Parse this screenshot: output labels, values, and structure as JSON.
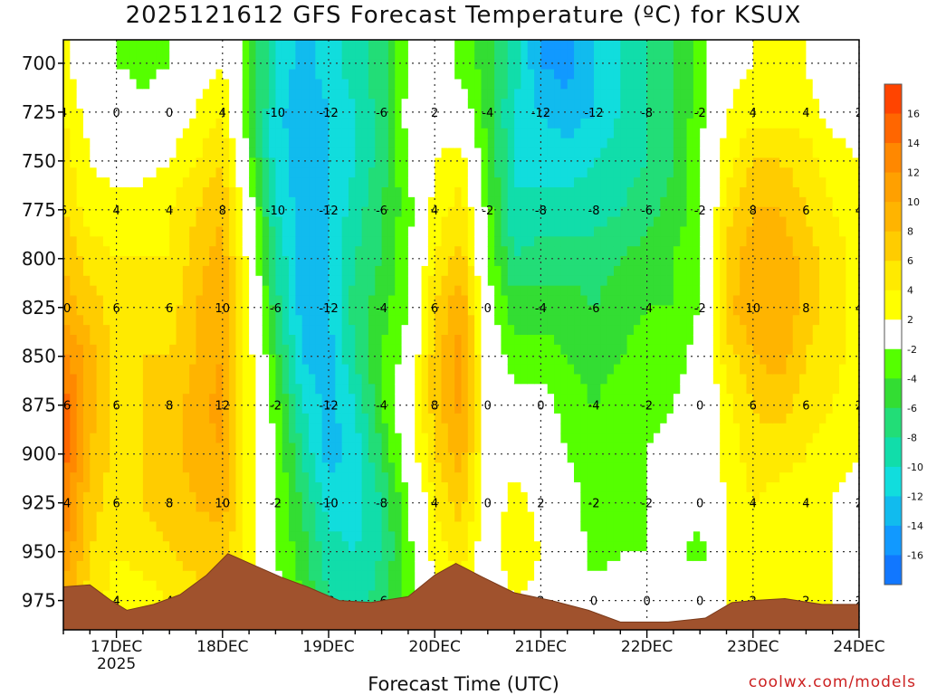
{
  "title": "2025121612 GFS Forecast Temperature (ºC) for KSUX",
  "xlabel": "Forecast Time (UTC)",
  "credit": "coolwx.com/models",
  "chart_data": {
    "type": "heatmap",
    "title": "2025121612 GFS Forecast Temperature (ºC) for KSUX",
    "xlabel": "Forecast Time (UTC)",
    "ylabel": "",
    "x_ticks": [
      "17DEC",
      "18DEC",
      "19DEC",
      "20DEC",
      "21DEC",
      "22DEC",
      "23DEC",
      "24DEC"
    ],
    "x_year": "2025",
    "xlim_days": [
      16.5,
      24.0
    ],
    "y_ticks": [
      700,
      725,
      750,
      775,
      800,
      825,
      850,
      875,
      900,
      925,
      950,
      975
    ],
    "ylim_hpa": [
      688,
      990
    ],
    "y_inverted": true,
    "colorbar": {
      "labels": [
        16,
        14,
        12,
        10,
        8,
        6,
        4,
        2,
        -2,
        -4,
        -6,
        -8,
        -10,
        -12,
        -14,
        -16
      ],
      "colors": [
        "#ff4400",
        "#ff6600",
        "#ff8800",
        "#ffa000",
        "#ffb400",
        "#ffcc00",
        "#ffea00",
        "#ffff00",
        "#ffffff",
        "#55ff00",
        "#33dd33",
        "#22dd77",
        "#11ddaa",
        "#11dddd",
        "#11bbee",
        "#1199ff",
        "#1177ff"
      ]
    },
    "terrain_color": "#a0522d",
    "columns": [
      {
        "day": 16.5,
        "values": {
          "700": 3,
          "725": 4,
          "750": 5,
          "775": 6,
          "800": 8,
          "825": 9,
          "850": 13,
          "875": 15,
          "900": 15,
          "925": 14,
          "950": 12,
          "975": 9
        }
      },
      {
        "day": 16.75,
        "values": {
          "700": -1,
          "725": 1,
          "750": 2,
          "775": 3,
          "800": 5,
          "825": 7,
          "850": 9,
          "875": 9,
          "900": 8,
          "925": 7,
          "950": 6,
          "975": 5
        }
      },
      {
        "day": 17.0,
        "values": {
          "700": -2,
          "725": 0,
          "750": 1,
          "775": 3,
          "800": 4,
          "825": 5,
          "850": 5,
          "875": 5,
          "900": 5,
          "925": 5,
          "950": 4,
          "975": 3
        }
      },
      {
        "day": 17.25,
        "values": {
          "700": -3,
          "725": -1,
          "750": 1,
          "775": 3,
          "800": 4,
          "825": 5,
          "850": 6,
          "875": 6,
          "900": 6,
          "925": 6,
          "950": 5,
          "975": 3
        }
      },
      {
        "day": 17.5,
        "values": {
          "700": -2,
          "725": 0,
          "750": 2,
          "775": 4,
          "800": 4,
          "825": 5,
          "850": 6,
          "875": 7,
          "900": 7,
          "925": 7,
          "950": 6,
          "975": 4
        }
      },
      {
        "day": 17.75,
        "values": {
          "700": 1,
          "725": 2,
          "750": 4,
          "775": 6,
          "800": 7,
          "825": 8,
          "850": 8,
          "875": 9,
          "900": 9,
          "925": 8,
          "950": 7,
          "975": 5
        }
      },
      {
        "day": 18.0,
        "values": {
          "700": 2,
          "725": 4,
          "750": 6,
          "775": 8,
          "800": 9,
          "825": 10,
          "850": 10,
          "875": 11,
          "900": 10,
          "925": 9,
          "950": 7,
          "975": 5
        }
      },
      {
        "day": 18.25,
        "values": {
          "700": -4,
          "725": -3,
          "750": -3,
          "775": 0,
          "800": 1,
          "825": 2,
          "850": 3,
          "875": 3,
          "900": 3,
          "925": 3,
          "950": 3,
          "975": 2
        }
      },
      {
        "day": 18.5,
        "values": {
          "700": -10,
          "725": -11,
          "750": -11,
          "775": -10,
          "800": -8,
          "825": -7,
          "850": -5,
          "875": -3,
          "900": -2,
          "925": -2,
          "950": -2,
          "975": -1
        }
      },
      {
        "day": 18.75,
        "values": {
          "700": -13,
          "725": -14,
          "750": -13,
          "775": -13,
          "800": -13,
          "825": -13,
          "850": -12,
          "875": -10,
          "900": -8,
          "925": -6,
          "950": -5,
          "975": -4
        }
      },
      {
        "day": 19.0,
        "values": {
          "700": -11,
          "725": -12,
          "750": -12,
          "775": -12,
          "800": -12,
          "825": -12,
          "850": -13,
          "875": -13,
          "900": -13,
          "925": -11,
          "950": -9,
          "975": -8
        }
      },
      {
        "day": 19.25,
        "values": {
          "700": -9,
          "725": -10,
          "750": -10,
          "775": -9,
          "800": -8,
          "825": -7,
          "850": -8,
          "875": -10,
          "900": -11,
          "925": -11,
          "950": -10,
          "975": -9
        }
      },
      {
        "day": 19.5,
        "values": {
          "700": -7,
          "725": -7,
          "750": -7,
          "775": -6,
          "800": -6,
          "825": -5,
          "850": -4,
          "875": -4,
          "900": -6,
          "925": -8,
          "950": -8,
          "975": -7
        }
      },
      {
        "day": 19.75,
        "values": {
          "700": -2,
          "725": -1,
          "750": -2,
          "775": -3,
          "800": -2,
          "825": -2,
          "850": -1,
          "875": 0,
          "900": 0,
          "925": -2,
          "950": -3,
          "975": -3
        }
      },
      {
        "day": 20.0,
        "values": {
          "700": 0,
          "725": 1,
          "750": 2,
          "775": 3,
          "800": 4,
          "825": 6,
          "850": 7,
          "875": 7,
          "900": 6,
          "925": 4,
          "950": 3,
          "975": 2
        }
      },
      {
        "day": 20.25,
        "values": {
          "700": -3,
          "725": 0,
          "750": 3,
          "775": 5,
          "800": 7,
          "825": 10,
          "850": 11,
          "875": 11,
          "900": 9,
          "925": 7,
          "950": 5,
          "975": 3
        }
      },
      {
        "day": 20.5,
        "values": {
          "700": -5,
          "725": -5,
          "750": -4,
          "775": -3,
          "800": -2,
          "825": -1,
          "850": 0,
          "875": 0,
          "900": 1,
          "925": 0,
          "950": 0,
          "975": 0
        }
      },
      {
        "day": 20.75,
        "values": {
          "700": -9,
          "725": -10,
          "750": -10,
          "775": -10,
          "800": -8,
          "825": -5,
          "850": -3,
          "875": -1,
          "900": 1,
          "925": 3,
          "950": 4,
          "975": 2
        }
      },
      {
        "day": 21.0,
        "values": {
          "700": -14,
          "725": -12,
          "750": -11,
          "775": -9,
          "800": -7,
          "825": -5,
          "850": -3,
          "875": -1,
          "900": 0,
          "925": 1,
          "950": 2,
          "975": 1
        }
      },
      {
        "day": 21.25,
        "values": {
          "700": -15,
          "725": -13,
          "750": -11,
          "775": -9,
          "800": -7,
          "825": -5,
          "850": -4,
          "875": -3,
          "900": -2,
          "925": -1,
          "950": 0,
          "975": 0
        }
      },
      {
        "day": 21.5,
        "values": {
          "700": -12,
          "725": -12,
          "750": -10,
          "775": -9,
          "800": -7,
          "825": -6,
          "850": -5,
          "875": -4,
          "900": -3,
          "925": -3,
          "950": -3,
          "975": -1
        }
      },
      {
        "day": 21.75,
        "values": {
          "700": -10,
          "725": -10,
          "750": -9,
          "775": -8,
          "800": -6,
          "825": -5,
          "850": -4,
          "875": -3,
          "900": -3,
          "925": -3,
          "950": -2,
          "975": -1
        }
      },
      {
        "day": 22.0,
        "values": {
          "700": -8,
          "725": -8,
          "750": -8,
          "775": -7,
          "800": -5,
          "825": -4,
          "850": -3,
          "875": -3,
          "900": -2,
          "925": -2,
          "950": -2,
          "975": -1
        }
      },
      {
        "day": 22.25,
        "values": {
          "700": -6,
          "725": -6,
          "750": -6,
          "775": -5,
          "800": -4,
          "825": -4,
          "850": -3,
          "875": -2,
          "900": -1,
          "925": -1,
          "950": -1,
          "975": 0
        }
      },
      {
        "day": 22.5,
        "values": {
          "700": -3,
          "725": -3,
          "750": -2,
          "775": -3,
          "800": -2,
          "825": -2,
          "850": -1,
          "875": -1,
          "900": -1,
          "925": -1,
          "950": -3,
          "975": 0
        }
      },
      {
        "day": 22.75,
        "values": {
          "700": 1,
          "725": 2,
          "750": 3,
          "775": 5,
          "800": 7,
          "825": 7,
          "850": 5,
          "875": 3,
          "900": 3,
          "925": 2,
          "950": 2,
          "975": 2
        }
      },
      {
        "day": 23.0,
        "values": {
          "700": 2,
          "725": 3,
          "750": 6,
          "775": 8,
          "800": 9,
          "825": 10,
          "850": 8,
          "875": 6,
          "900": 5,
          "925": 4,
          "950": 3,
          "975": 2
        }
      },
      {
        "day": 23.25,
        "values": {
          "700": 2,
          "725": 3,
          "750": 6,
          "775": 8,
          "800": 10,
          "825": 10,
          "850": 9,
          "875": 7,
          "900": 5,
          "925": 3,
          "950": 3,
          "975": 2
        }
      },
      {
        "day": 23.5,
        "values": {
          "700": 2,
          "725": 3,
          "750": 5,
          "775": 6,
          "800": 7,
          "825": 7,
          "850": 6,
          "875": 5,
          "900": 4,
          "925": 3,
          "950": 2,
          "975": 2
        }
      },
      {
        "day": 23.75,
        "values": {
          "700": 0,
          "725": 1,
          "750": 3,
          "775": 4,
          "800": 5,
          "825": 5,
          "850": 5,
          "875": 4,
          "900": 3,
          "925": 2,
          "950": 2,
          "975": 2
        }
      },
      {
        "day": 24.0,
        "values": {
          "700": 0,
          "725": 1,
          "750": 2,
          "775": 3,
          "800": 3,
          "825": 3,
          "850": 3,
          "875": 2,
          "900": 2,
          "925": 1,
          "950": 1,
          "975": 1
        }
      }
    ],
    "terrain_surface_hpa": [
      {
        "day": 16.5,
        "p": 968
      },
      {
        "day": 16.75,
        "p": 967
      },
      {
        "day": 16.95,
        "p": 975
      },
      {
        "day": 17.1,
        "p": 980
      },
      {
        "day": 17.35,
        "p": 977
      },
      {
        "day": 17.6,
        "p": 972
      },
      {
        "day": 17.85,
        "p": 962
      },
      {
        "day": 18.05,
        "p": 951
      },
      {
        "day": 18.3,
        "p": 957
      },
      {
        "day": 18.55,
        "p": 963
      },
      {
        "day": 18.8,
        "p": 968
      },
      {
        "day": 19.1,
        "p": 975
      },
      {
        "day": 19.4,
        "p": 976
      },
      {
        "day": 19.75,
        "p": 973
      },
      {
        "day": 20.0,
        "p": 962
      },
      {
        "day": 20.2,
        "p": 956
      },
      {
        "day": 20.45,
        "p": 963
      },
      {
        "day": 20.75,
        "p": 971
      },
      {
        "day": 21.1,
        "p": 975
      },
      {
        "day": 21.45,
        "p": 980
      },
      {
        "day": 21.75,
        "p": 986
      },
      {
        "day": 22.2,
        "p": 986
      },
      {
        "day": 22.55,
        "p": 984
      },
      {
        "day": 22.8,
        "p": 976
      },
      {
        "day": 23.0,
        "p": 975
      },
      {
        "day": 23.3,
        "p": 974
      },
      {
        "day": 23.65,
        "p": 977
      },
      {
        "day": 24.0,
        "p": 977
      }
    ]
  }
}
